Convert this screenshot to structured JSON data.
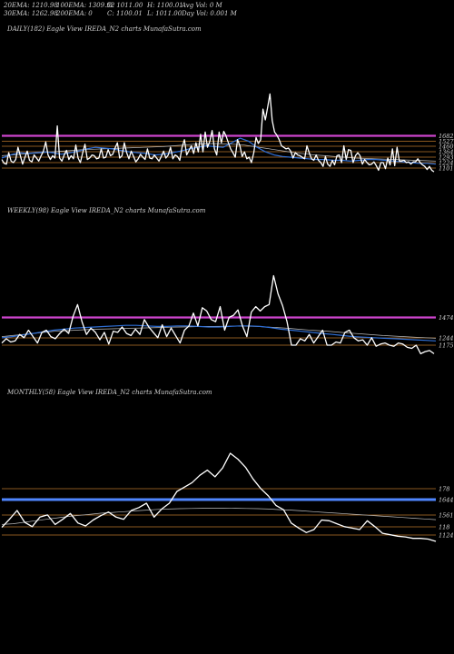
{
  "header": {
    "row1": [
      {
        "text": "20EMA: 1210.98"
      },
      {
        "text": "100EMA: 1309.92"
      },
      {
        "text": "O: 1011.00"
      },
      {
        "text": "H: 1100.01"
      },
      {
        "text": "Avg Vol: 0  M"
      }
    ],
    "row2": [
      {
        "text": "30EMA: 1262.98"
      },
      {
        "text": "200EMA: 0"
      },
      {
        "text": "C: 1100.01"
      },
      {
        "text": "L: 1011.00"
      },
      {
        "text": "Day Vol: 0.001 M"
      }
    ]
  },
  "colors": {
    "background": "#000000",
    "price": "#ffffff",
    "ema_blue": "#2f6fd6",
    "ema_grey": "#bdbdbd",
    "magenta": "#cc44cc",
    "blue_band": "#4f86ff",
    "orange": "#b8752a"
  },
  "chart_data": [
    {
      "type": "line",
      "title": "DAILY(182) Eagle   View  IREDA_N2  charts MunafaSutra.com",
      "y_levels": [
        {
          "label": "1682",
          "color": "#cc44cc"
        },
        {
          "label": "1527",
          "color": "#b8752a"
        },
        {
          "label": "1460",
          "color": "#b8752a"
        },
        {
          "label": "1364",
          "color": "#b8752a"
        },
        {
          "label": "1293",
          "color": "#b8752a"
        },
        {
          "label": "1224",
          "color": "#b8752a"
        },
        {
          "label": "1101",
          "color": "#b8752a"
        }
      ],
      "series": [
        {
          "key": "price",
          "values": [
            1240,
            1190,
            1180,
            1330,
            1220,
            1200,
            1240,
            1400,
            1290,
            1180,
            1270,
            1350,
            1230,
            1210,
            1300,
            1260,
            1220,
            1290,
            1350,
            1470,
            1300,
            1240,
            1290,
            1260,
            1680,
            1260,
            1220,
            1300,
            1360,
            1240,
            1290,
            1250,
            1430,
            1260,
            1200,
            1330,
            1440,
            1240,
            1260,
            1300,
            1290,
            1250,
            1260,
            1380,
            1260,
            1270,
            1370,
            1290,
            1310,
            1390,
            1460,
            1260,
            1290,
            1460,
            1330,
            1250,
            1350,
            1280,
            1210,
            1250,
            1310,
            1270,
            1240,
            1380,
            1260,
            1250,
            1300,
            1260,
            1220,
            1280,
            1350,
            1260,
            1300,
            1400,
            1250,
            1300,
            1280,
            1230,
            1400,
            1500,
            1300,
            1360,
            1420,
            1320,
            1460,
            1340,
            1570,
            1340,
            1600,
            1400,
            1480,
            1620,
            1380,
            1300,
            1600,
            1460,
            1610,
            1550,
            1460,
            1380,
            1330,
            1270,
            1500,
            1420,
            1280,
            1340,
            1250,
            1270,
            1200,
            1330,
            1530,
            1450,
            1500,
            1900,
            1760,
            1920,
            2100,
            1750,
            1600,
            1560,
            1500,
            1420,
            1400,
            1380,
            1390,
            1350,
            1260,
            1330,
            1300,
            1290,
            1270,
            1250,
            1420,
            1330,
            1250,
            1230,
            1300,
            1230,
            1200,
            1150,
            1280,
            1180,
            1150,
            1230,
            1170,
            1290,
            1300,
            1200,
            1420,
            1240,
            1370,
            1360,
            1200,
            1290,
            1330,
            1290,
            1180,
            1240,
            1200,
            1170,
            1180,
            1210,
            1160,
            1100,
            1200,
            1200,
            1120,
            1260,
            1170,
            1380,
            1160,
            1400,
            1220,
            1220,
            1230,
            1200,
            1210,
            1180,
            1210,
            1210,
            1250,
            1200,
            1170,
            1150,
            1110,
            1150,
            1100,
            1080
          ]
        },
        {
          "key": "ema_blue",
          "values": [
            1260,
            1300,
            1330,
            1320,
            1330,
            1340,
            1330,
            1310,
            1330,
            1350,
            1380,
            1400,
            1390,
            1380,
            1360,
            1340,
            1330,
            1320,
            1300,
            1310,
            1330,
            1350,
            1380,
            1400,
            1420,
            1410,
            1400,
            1460,
            1520,
            1480,
            1400,
            1340,
            1300,
            1280,
            1270,
            1260,
            1250,
            1240,
            1240,
            1230,
            1230,
            1220,
            1230,
            1240,
            1240,
            1230,
            1220,
            1210,
            1200,
            1190,
            1190,
            1180
          ]
        },
        {
          "key": "ema_grey",
          "values": [
            1290,
            1300,
            1310,
            1320,
            1330,
            1340,
            1350,
            1360,
            1370,
            1375,
            1380,
            1385,
            1390,
            1395,
            1400,
            1405,
            1410,
            1420,
            1430,
            1440,
            1445,
            1450,
            1445,
            1440,
            1430,
            1410,
            1390,
            1370,
            1350,
            1330,
            1315,
            1300,
            1290,
            1280,
            1270,
            1260,
            1255,
            1250,
            1245,
            1240,
            1235,
            1230,
            1225,
            1220
          ]
        }
      ]
    },
    {
      "type": "line",
      "title": "WEEKLY(98) Eagle   View  IREDA_N2  charts MunafaSutra.com",
      "y_levels": [
        {
          "label": "1474",
          "color": "#cc44cc"
        },
        {
          "label": "1244",
          "color": "#b8752a"
        },
        {
          "label": "1175",
          "color": "#b8752a"
        }
      ],
      "series": [
        {
          "key": "price",
          "values": [
            1140,
            1180,
            1150,
            1160,
            1220,
            1190,
            1260,
            1200,
            1140,
            1240,
            1260,
            1200,
            1180,
            1230,
            1270,
            1230,
            1390,
            1500,
            1340,
            1220,
            1280,
            1240,
            1170,
            1240,
            1130,
            1250,
            1240,
            1290,
            1230,
            1210,
            1270,
            1220,
            1360,
            1290,
            1240,
            1190,
            1310,
            1200,
            1280,
            1210,
            1140,
            1260,
            1300,
            1420,
            1300,
            1470,
            1440,
            1360,
            1340,
            1480,
            1260,
            1380,
            1400,
            1450,
            1300,
            1200,
            1430,
            1480,
            1440,
            1480,
            1500,
            1770,
            1600,
            1490,
            1340,
            1120,
            1120,
            1180,
            1160,
            1220,
            1140,
            1200,
            1260,
            1120,
            1120,
            1150,
            1140,
            1240,
            1260,
            1190,
            1160,
            1170,
            1120,
            1190,
            1110,
            1130,
            1140,
            1120,
            1110,
            1140,
            1130,
            1100,
            1090,
            1120,
            1040,
            1060,
            1070,
            1040
          ]
        },
        {
          "key": "ema_blue",
          "values": [
            1190,
            1200,
            1215,
            1230,
            1245,
            1260,
            1270,
            1280,
            1285,
            1290,
            1295,
            1300,
            1305,
            1305,
            1300,
            1295,
            1295,
            1300,
            1300,
            1295,
            1290,
            1290,
            1295,
            1300,
            1300,
            1295,
            1285,
            1270,
            1260,
            1250,
            1240,
            1230,
            1220,
            1210,
            1200,
            1195,
            1190,
            1185,
            1180,
            1175,
            1170,
            1165,
            1160
          ]
        },
        {
          "key": "ema_grey",
          "values": [
            1200,
            1210,
            1220,
            1230,
            1240,
            1250,
            1255,
            1260,
            1265,
            1270,
            1272,
            1275,
            1278,
            1280,
            1282,
            1285,
            1288,
            1290,
            1292,
            1295,
            1296,
            1297,
            1298,
            1298,
            1295,
            1290,
            1285,
            1278,
            1270,
            1262,
            1255,
            1248,
            1240,
            1232,
            1225,
            1218,
            1210,
            1205,
            1200,
            1195,
            1190,
            1185
          ]
        }
      ]
    },
    {
      "type": "line",
      "title": "MONTHLY(58) Eagle   View  IREDA_N2  charts MunafaSutra.com",
      "y_levels": [
        {
          "label": "178",
          "color": "#b8752a"
        },
        {
          "label": "1644",
          "color": "#4f86ff"
        },
        {
          "label": "1561",
          "color": "#b8752a"
        },
        {
          "label": "118",
          "color": "#b8752a"
        },
        {
          "label": "1124",
          "color": "#b8752a"
        }
      ],
      "series": [
        {
          "key": "price",
          "values": [
            1190,
            1300,
            1420,
            1260,
            1200,
            1330,
            1360,
            1230,
            1300,
            1380,
            1250,
            1210,
            1290,
            1350,
            1400,
            1330,
            1300,
            1420,
            1460,
            1520,
            1330,
            1440,
            1520,
            1680,
            1740,
            1800,
            1900,
            1970,
            1880,
            2000,
            2200,
            2120,
            2010,
            1850,
            1720,
            1620,
            1490,
            1430,
            1250,
            1180,
            1120,
            1160,
            1290,
            1280,
            1240,
            1200,
            1180,
            1160,
            1280,
            1200,
            1110,
            1090,
            1070,
            1060,
            1040,
            1040,
            1030,
            1000
          ]
        },
        {
          "key": "ema_grey",
          "values": [
            1230,
            1240,
            1260,
            1280,
            1300,
            1320,
            1340,
            1355,
            1370,
            1385,
            1395,
            1405,
            1415,
            1425,
            1435,
            1440,
            1445,
            1448,
            1450,
            1452,
            1452,
            1450,
            1448,
            1445,
            1440,
            1432,
            1425,
            1415,
            1405,
            1395,
            1385,
            1375,
            1365,
            1355,
            1345,
            1335,
            1325,
            1315,
            1305,
            1295
          ]
        }
      ]
    }
  ]
}
